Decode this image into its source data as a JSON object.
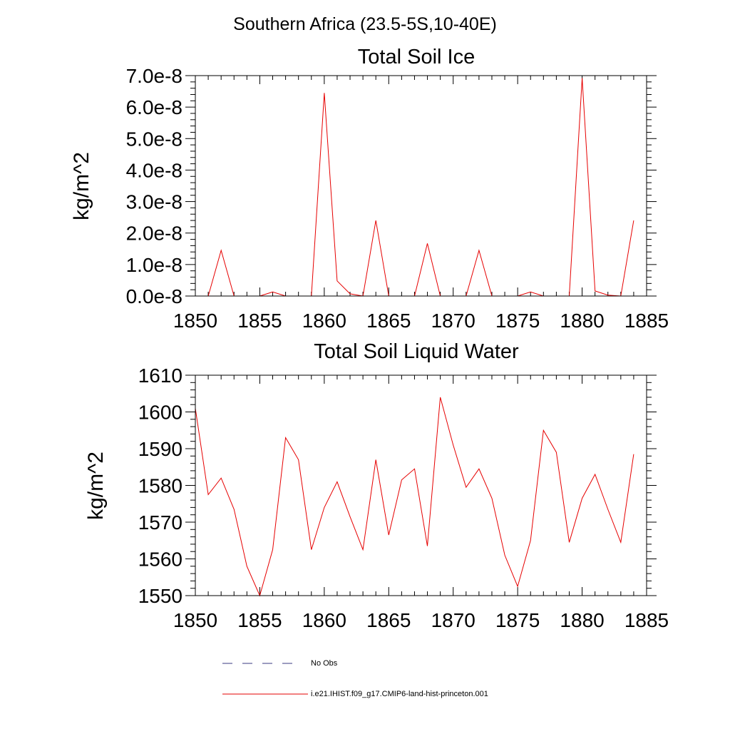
{
  "page_title": "Southern Africa (23.5-5S,10-40E)",
  "colors": {
    "model_line": "#e60000",
    "obs_line": "#3a3a80",
    "axis": "#000000",
    "background": "#ffffff"
  },
  "legend": {
    "obs_label": "No Obs",
    "model_label": "i.e21.IHIST.f09_g17.CMIP6-land-hist-princeton.001"
  },
  "chart_data": [
    {
      "type": "line",
      "title": "Total Soil Ice",
      "xlabel": "",
      "ylabel": "kg/m^2",
      "xlim": [
        1850,
        1885
      ],
      "ylim": [
        0,
        7e-08
      ],
      "grid": false,
      "x_ticks": [
        1850,
        1855,
        1860,
        1865,
        1870,
        1875,
        1880,
        1885
      ],
      "x_tick_labels": [
        "1850",
        "1855",
        "1860",
        "1865",
        "1870",
        "1875",
        "1880",
        "1885"
      ],
      "y_ticks": [
        0,
        1e-08,
        2e-08,
        3e-08,
        4e-08,
        5e-08,
        6e-08,
        7e-08
      ],
      "y_tick_labels": [
        "0.0e-8",
        "1.0e-8",
        "2.0e-8",
        "3.0e-8",
        "4.0e-8",
        "5.0e-8",
        "6.0e-8",
        "7.0e-8"
      ],
      "y_minor_step": 2e-09,
      "series": [
        {
          "name": "i.e21.IHIST.f09_g17.CMIP6-land-hist-princeton.001",
          "x": [
            1850,
            1851,
            1852,
            1853,
            1854,
            1855,
            1856,
            1857,
            1858,
            1859,
            1860,
            1861,
            1862,
            1863,
            1864,
            1865,
            1866,
            1867,
            1868,
            1869,
            1870,
            1871,
            1872,
            1873,
            1874,
            1875,
            1876,
            1877,
            1878,
            1879,
            1880,
            1881,
            1882,
            1883,
            1884
          ],
          "values": [
            0,
            0,
            1.45e-08,
            0,
            0,
            0,
            1.3e-09,
            0,
            0,
            0,
            6.45e-08,
            4.8e-09,
            7e-10,
            0,
            2.4e-08,
            0,
            0,
            0,
            1.67e-08,
            0,
            0,
            0,
            1.45e-08,
            0,
            0,
            0,
            1.3e-09,
            0,
            0,
            0,
            6.92e-08,
            1.6e-09,
            3e-10,
            0,
            2.4e-08
          ]
        }
      ]
    },
    {
      "type": "line",
      "title": "Total Soil Liquid Water",
      "xlabel": "",
      "ylabel": "kg/m^2",
      "xlim": [
        1850,
        1885
      ],
      "ylim": [
        1550,
        1610
      ],
      "grid": false,
      "x_ticks": [
        1850,
        1855,
        1860,
        1865,
        1870,
        1875,
        1880,
        1885
      ],
      "x_tick_labels": [
        "1850",
        "1855",
        "1860",
        "1865",
        "1870",
        "1875",
        "1880",
        "1885"
      ],
      "y_ticks": [
        1550,
        1560,
        1570,
        1580,
        1590,
        1600,
        1610
      ],
      "y_tick_labels": [
        "1550",
        "1560",
        "1570",
        "1580",
        "1590",
        "1600",
        "1610"
      ],
      "y_minor_step": 2,
      "series": [
        {
          "name": "i.e21.IHIST.f09_g17.CMIP6-land-hist-princeton.001",
          "x": [
            1850,
            1851,
            1852,
            1853,
            1854,
            1855,
            1856,
            1857,
            1858,
            1859,
            1860,
            1861,
            1862,
            1863,
            1864,
            1865,
            1866,
            1867,
            1868,
            1869,
            1870,
            1871,
            1872,
            1873,
            1874,
            1875,
            1876,
            1877,
            1878,
            1879,
            1880,
            1881,
            1882,
            1883,
            1884
          ],
          "values": [
            1601,
            1577.5,
            1582,
            1573.5,
            1558,
            1550,
            1562.5,
            1593,
            1587,
            1562.5,
            1574,
            1581,
            1571.5,
            1562.5,
            1587,
            1566.5,
            1581.5,
            1584.5,
            1563.5,
            1604,
            1591,
            1579.5,
            1584.5,
            1576.5,
            1561,
            1552.5,
            1565,
            1595,
            1589,
            1564.5,
            1576.5,
            1583,
            1573.5,
            1564.5,
            1588.5
          ]
        }
      ]
    }
  ]
}
